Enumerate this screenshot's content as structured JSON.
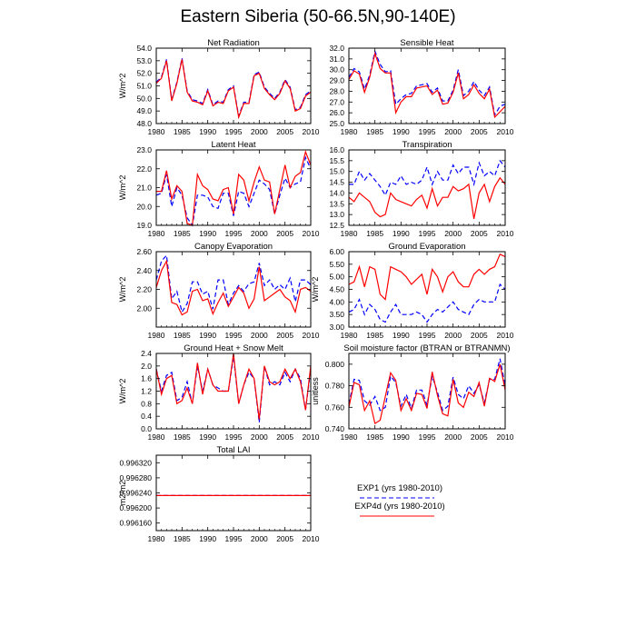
{
  "figure": {
    "title": "Eastern Siberia (50-66.5N,90-140E)",
    "series_colors": {
      "EXP1": "#0000ff",
      "EXP4d": "#ff0000"
    }
  },
  "legend": {
    "entries": [
      {
        "label": "EXP1 (yrs 1980-2010)",
        "color": "#0000ff",
        "style": "dashed"
      },
      {
        "label": "EXP4d (yrs 1980-2010)",
        "color": "#ff0000",
        "style": "solid"
      }
    ]
  },
  "chart_data": [
    {
      "type": "line",
      "title": "Net Radiation",
      "ylabel": "W/m^2",
      "xlim": [
        1980,
        2010
      ],
      "ylim": [
        48.0,
        54.0
      ],
      "xticks": [
        "1980",
        "1985",
        "1990",
        "1995",
        "2000",
        "2005",
        "2010"
      ],
      "yticks": [
        "48.0",
        "49.0",
        "50.0",
        "51.0",
        "52.0",
        "53.0",
        "54.0"
      ],
      "x_start": 1980,
      "series": [
        {
          "name": "EXP1",
          "values": [
            51.3,
            51.7,
            53.1,
            49.9,
            51.3,
            53.2,
            50.6,
            49.9,
            49.8,
            49.6,
            50.7,
            49.5,
            49.8,
            49.7,
            50.7,
            51.0,
            48.6,
            49.7,
            49.7,
            51.9,
            52.1,
            50.9,
            50.4,
            50.0,
            50.5,
            51.5,
            50.9,
            49.1,
            49.3,
            50.3,
            50.6
          ]
        },
        {
          "name": "EXP4d",
          "values": [
            51.2,
            51.6,
            53.0,
            49.8,
            51.2,
            53.1,
            50.5,
            49.8,
            49.7,
            49.5,
            50.6,
            49.4,
            49.7,
            49.6,
            50.6,
            50.9,
            48.5,
            49.6,
            49.6,
            51.8,
            52.0,
            50.8,
            50.3,
            49.9,
            50.4,
            51.4,
            50.8,
            49.0,
            49.2,
            50.2,
            50.5
          ]
        }
      ]
    },
    {
      "type": "line",
      "title": "Sensible Heat",
      "ylabel": "",
      "xlim": [
        1980,
        2010
      ],
      "ylim": [
        25.0,
        32.0
      ],
      "xticks": [
        "1980",
        "1985",
        "1990",
        "1995",
        "2000",
        "2005",
        "2010"
      ],
      "yticks": [
        "25.0",
        "26.0",
        "27.0",
        "28.0",
        "29.0",
        "30.0",
        "31.0",
        "32.0"
      ],
      "x_start": 1980,
      "series": [
        {
          "name": "EXP1",
          "values": [
            29.3,
            30.1,
            29.8,
            28.2,
            29.5,
            31.7,
            30.5,
            29.8,
            29.9,
            26.8,
            27.3,
            27.7,
            27.8,
            28.5,
            28.6,
            28.7,
            27.9,
            28.3,
            27.1,
            27.1,
            28.1,
            30.0,
            27.6,
            28.0,
            28.9,
            28.1,
            27.6,
            28.4,
            25.8,
            26.6,
            26.8
          ]
        },
        {
          "name": "EXP4d",
          "values": [
            29.1,
            29.9,
            29.6,
            27.9,
            29.3,
            31.5,
            30.1,
            29.7,
            29.7,
            26.0,
            27.0,
            27.5,
            27.5,
            28.3,
            28.4,
            28.5,
            27.7,
            28.1,
            26.8,
            26.9,
            27.9,
            29.7,
            27.3,
            27.7,
            28.6,
            27.8,
            27.3,
            28.2,
            25.6,
            26.1,
            26.6
          ]
        }
      ]
    },
    {
      "type": "line",
      "title": "Latent Heat",
      "ylabel": "W/m^2",
      "xlim": [
        1980,
        2010
      ],
      "ylim": [
        19.0,
        23.0
      ],
      "xticks": [
        "1980",
        "1985",
        "1990",
        "1995",
        "2000",
        "2005",
        "2010"
      ],
      "yticks": [
        "19.0",
        "20.0",
        "21.0",
        "22.0",
        "23.0"
      ],
      "x_start": 1980,
      "series": [
        {
          "name": "EXP1",
          "values": [
            20.6,
            20.7,
            21.7,
            20.0,
            21.0,
            20.6,
            19.4,
            19.0,
            20.6,
            20.6,
            20.5,
            20.0,
            19.9,
            20.7,
            20.7,
            19.5,
            20.8,
            20.7,
            20.0,
            20.7,
            21.4,
            21.2,
            20.9,
            19.6,
            20.6,
            21.5,
            21.0,
            21.2,
            21.3,
            22.6,
            22.0
          ]
        },
        {
          "name": "EXP4d",
          "values": [
            20.8,
            20.8,
            21.9,
            20.4,
            21.1,
            20.8,
            19.1,
            19.0,
            21.7,
            21.1,
            20.9,
            20.4,
            20.3,
            20.9,
            21.0,
            19.6,
            21.7,
            21.4,
            20.3,
            21.3,
            22.1,
            21.4,
            21.3,
            19.6,
            20.9,
            22.2,
            21.0,
            21.6,
            21.8,
            22.9,
            22.2
          ]
        }
      ]
    },
    {
      "type": "line",
      "title": "Transpiration",
      "ylabel": "",
      "xlim": [
        1980,
        2010
      ],
      "ylim": [
        12.5,
        16.0
      ],
      "xticks": [
        "1980",
        "1985",
        "1990",
        "1995",
        "2000",
        "2005",
        "2010"
      ],
      "yticks": [
        "12.5",
        "13.0",
        "13.5",
        "14.0",
        "14.5",
        "15.0",
        "15.5",
        "16.0"
      ],
      "x_start": 1980,
      "series": [
        {
          "name": "EXP1",
          "values": [
            14.4,
            14.4,
            15.0,
            14.6,
            14.9,
            14.6,
            14.3,
            13.9,
            14.5,
            14.4,
            14.8,
            14.4,
            14.5,
            14.4,
            14.6,
            15.2,
            14.4,
            15.0,
            14.6,
            14.6,
            15.3,
            14.9,
            15.2,
            15.2,
            14.4,
            15.4,
            14.8,
            15.0,
            14.8,
            15.5,
            15.2
          ]
        },
        {
          "name": "EXP4d",
          "values": [
            13.8,
            13.6,
            14.0,
            13.8,
            13.6,
            13.1,
            12.9,
            13.0,
            14.0,
            13.7,
            13.6,
            13.5,
            13.4,
            13.7,
            13.9,
            13.3,
            14.2,
            13.4,
            13.8,
            13.8,
            14.3,
            14.1,
            14.2,
            14.4,
            12.8,
            14.0,
            14.4,
            13.6,
            14.3,
            14.7,
            14.4
          ]
        }
      ]
    },
    {
      "type": "line",
      "title": "Canopy Evaporation",
      "ylabel": "W/m^2",
      "xlim": [
        1980,
        2010
      ],
      "ylim": [
        1.8,
        2.6
      ],
      "xticks": [
        "1980",
        "1985",
        "1990",
        "1995",
        "2000",
        "2005",
        "2010"
      ],
      "yticks": [
        "2.00",
        "2.20",
        "2.40",
        "2.60"
      ],
      "x_start": 1980,
      "series": [
        {
          "name": "EXP1",
          "values": [
            2.3,
            2.5,
            2.56,
            2.1,
            2.18,
            1.96,
            2.05,
            2.28,
            2.28,
            2.15,
            2.18,
            1.99,
            2.3,
            2.3,
            2.04,
            2.16,
            2.24,
            2.18,
            2.26,
            2.28,
            2.48,
            2.24,
            2.3,
            2.2,
            2.25,
            2.2,
            2.32,
            2.07,
            2.3,
            2.3,
            2.25
          ]
        },
        {
          "name": "EXP4d",
          "values": [
            2.22,
            2.4,
            2.5,
            2.06,
            2.04,
            1.93,
            1.96,
            2.18,
            2.2,
            2.08,
            2.1,
            1.94,
            2.06,
            2.16,
            2.02,
            2.12,
            2.22,
            2.16,
            2.0,
            2.1,
            2.44,
            2.08,
            2.12,
            2.16,
            2.2,
            2.12,
            2.08,
            1.96,
            2.2,
            2.22,
            2.18
          ]
        }
      ]
    },
    {
      "type": "line",
      "title": "Ground Evaporation",
      "ylabel": "W/m^2",
      "xlim": [
        1980,
        2010
      ],
      "ylim": [
        3.0,
        6.0
      ],
      "xticks": [
        "1980",
        "1985",
        "1990",
        "1995",
        "2000",
        "2005",
        "2010"
      ],
      "yticks": [
        "3.00",
        "3.50",
        "4.00",
        "4.50",
        "5.00",
        "5.50",
        "6.00"
      ],
      "x_start": 1980,
      "series": [
        {
          "name": "EXP1",
          "values": [
            3.6,
            3.7,
            4.1,
            3.5,
            3.9,
            3.7,
            3.3,
            3.2,
            3.6,
            3.9,
            3.5,
            3.5,
            3.5,
            3.6,
            3.5,
            3.2,
            3.5,
            3.7,
            3.6,
            3.8,
            4.0,
            3.7,
            3.6,
            3.5,
            3.9,
            4.1,
            4.0,
            4.0,
            4.0,
            4.7,
            4.5
          ]
        },
        {
          "name": "EXP4d",
          "values": [
            4.7,
            4.8,
            5.4,
            4.6,
            5.4,
            5.3,
            4.3,
            4.1,
            5.4,
            5.3,
            5.2,
            5.0,
            4.7,
            4.9,
            5.1,
            4.3,
            5.3,
            5.0,
            4.4,
            5.0,
            5.2,
            4.8,
            4.6,
            4.6,
            5.1,
            5.3,
            5.1,
            5.3,
            5.4,
            5.9,
            5.8
          ]
        }
      ]
    },
    {
      "type": "line",
      "title": "Ground Heat + Snow Melt",
      "ylabel": "W/m^2",
      "xlim": [
        1980,
        2010
      ],
      "ylim": [
        0.0,
        2.4
      ],
      "xticks": [
        "1980",
        "1985",
        "1990",
        "1995",
        "2000",
        "2005",
        "2010"
      ],
      "yticks": [
        "0.0",
        "0.4",
        "0.8",
        "1.2",
        "1.6",
        "2.0",
        "2.4"
      ],
      "x_start": 1980,
      "series": [
        {
          "name": "EXP1",
          "values": [
            1.9,
            1.2,
            1.7,
            1.8,
            0.9,
            1.0,
            1.5,
            0.8,
            2.0,
            1.2,
            1.9,
            1.4,
            1.3,
            1.2,
            1.2,
            2.3,
            0.8,
            1.4,
            1.8,
            1.6,
            0.2,
            2.0,
            1.4,
            1.5,
            1.4,
            1.8,
            1.5,
            1.9,
            1.6,
            0.6,
            1.9
          ]
        },
        {
          "name": "EXP4d",
          "values": [
            1.9,
            1.1,
            1.6,
            1.7,
            0.8,
            0.9,
            1.3,
            0.8,
            2.1,
            1.1,
            1.9,
            1.4,
            1.2,
            1.2,
            1.2,
            2.4,
            0.8,
            1.4,
            1.9,
            1.6,
            0.3,
            2.0,
            1.5,
            1.4,
            1.5,
            1.9,
            1.6,
            1.9,
            1.5,
            0.6,
            2.0
          ]
        }
      ]
    },
    {
      "type": "line",
      "title": "Soil moisture factor (BTRAN or BTRANMN)",
      "ylabel": "unitless",
      "xlim": [
        1980,
        2010
      ],
      "ylim": [
        0.74,
        0.81
      ],
      "xticks": [
        "1980",
        "1985",
        "1990",
        "1995",
        "2000",
        "2005",
        "2010"
      ],
      "yticks": [
        "0.740",
        "0.760",
        "0.780",
        "0.800"
      ],
      "x_start": 1980,
      "series": [
        {
          "name": "EXP1",
          "values": [
            0.763,
            0.786,
            0.785,
            0.766,
            0.762,
            0.77,
            0.757,
            0.76,
            0.789,
            0.783,
            0.761,
            0.772,
            0.759,
            0.776,
            0.776,
            0.762,
            0.789,
            0.774,
            0.757,
            0.761,
            0.788,
            0.772,
            0.768,
            0.78,
            0.773,
            0.781,
            0.764,
            0.786,
            0.786,
            0.805,
            0.78
          ]
        },
        {
          "name": "EXP4d",
          "values": [
            0.76,
            0.783,
            0.781,
            0.757,
            0.766,
            0.745,
            0.748,
            0.77,
            0.792,
            0.785,
            0.757,
            0.768,
            0.757,
            0.773,
            0.772,
            0.759,
            0.793,
            0.771,
            0.754,
            0.752,
            0.786,
            0.764,
            0.76,
            0.774,
            0.77,
            0.783,
            0.761,
            0.787,
            0.784,
            0.8,
            0.776
          ]
        }
      ]
    },
    {
      "type": "line",
      "title": "Total LAI",
      "ylabel": "m2/m2",
      "xlim": [
        1980,
        2010
      ],
      "ylim": [
        0.99614,
        0.99634
      ],
      "xticks": [
        "1980",
        "1985",
        "1990",
        "1995",
        "2000",
        "2005",
        "2010"
      ],
      "yticks": [
        "0.996160",
        "0.996200",
        "0.996240",
        "0.996280",
        "0.996320"
      ],
      "x_start": 1980,
      "series": [
        {
          "name": "EXP1",
          "values": [
            0.996233,
            0.996233,
            0.996233,
            0.996233,
            0.996233,
            0.996233,
            0.996233,
            0.996233,
            0.996233,
            0.996233,
            0.996233,
            0.996233,
            0.996233,
            0.996233,
            0.996233,
            0.996233,
            0.996233,
            0.996233,
            0.996233,
            0.996233,
            0.996233,
            0.996233,
            0.996233,
            0.996233,
            0.996233,
            0.996233,
            0.996233,
            0.996233,
            0.996233,
            0.996233,
            0.996233
          ]
        },
        {
          "name": "EXP4d",
          "values": [
            0.996233,
            0.996233,
            0.996233,
            0.996233,
            0.996233,
            0.996233,
            0.996233,
            0.996233,
            0.996233,
            0.996233,
            0.996233,
            0.996233,
            0.996233,
            0.996233,
            0.996233,
            0.996233,
            0.996233,
            0.996233,
            0.996233,
            0.996233,
            0.996233,
            0.996233,
            0.996233,
            0.996233,
            0.996233,
            0.996233,
            0.996233,
            0.996233,
            0.996233,
            0.996233,
            0.996233
          ]
        }
      ]
    }
  ]
}
